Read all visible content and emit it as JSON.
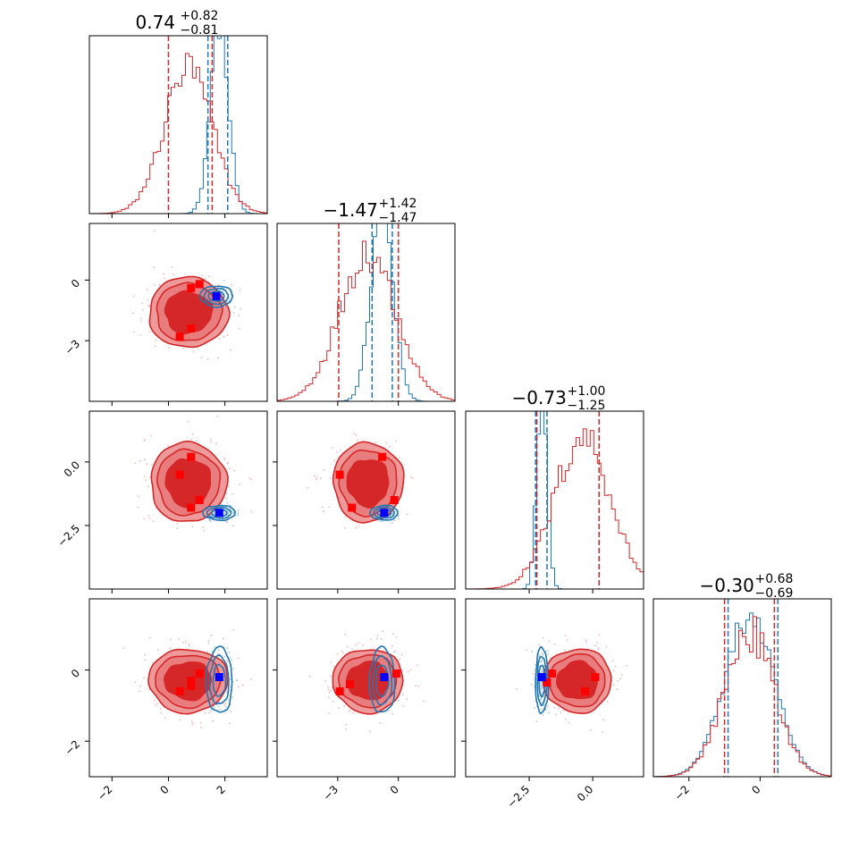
{
  "chart_data": {
    "type": "corner",
    "colors": {
      "red": "#d62728",
      "red_light": "#ee9a9a",
      "blue": "#1f77b4",
      "marker_red": "#ff0000",
      "marker_blue": "#0000ff"
    },
    "parameters": [
      {
        "index": 0,
        "range": [
          -2.8,
          3.5
        ],
        "ticks": [
          -2,
          0,
          2
        ],
        "tick_labels": [
          "−2",
          "0",
          "2"
        ]
      },
      {
        "index": 1,
        "range": [
          -6.0,
          2.8
        ],
        "ticks": [
          -3,
          0
        ],
        "tick_labels": [
          "−3",
          "0"
        ]
      },
      {
        "index": 2,
        "range": [
          -5.0,
          2.0
        ],
        "ticks": [
          -2.5,
          0.0
        ],
        "tick_labels": [
          "−2.5",
          "0.0"
        ]
      },
      {
        "index": 3,
        "range": [
          -3.0,
          2.0
        ],
        "ticks": [
          -2,
          0
        ],
        "tick_labels": [
          "−2",
          "0"
        ]
      }
    ],
    "titles": [
      {
        "main": "0.74",
        "plus": "+0.82",
        "minus": "−0.81"
      },
      {
        "main": "−1.47",
        "plus": "+1.42",
        "minus": "−1.47"
      },
      {
        "main": "−0.73",
        "plus": "+1.00",
        "minus": "−1.25"
      },
      {
        "main": "−0.30",
        "plus": "+0.68",
        "minus": "−0.69"
      }
    ],
    "marginals": [
      {
        "red": {
          "mean": 0.7,
          "sd": 0.85,
          "quantiles": [
            0.0,
            1.55
          ],
          "label_value": 0.74
        },
        "blue": {
          "mean": 1.8,
          "sd": 0.32,
          "quantiles": [
            1.4,
            2.1
          ]
        }
      },
      {
        "red": {
          "mean": -1.5,
          "sd": 1.4,
          "quantiles": [
            -2.95,
            0.0
          ],
          "label_value": -1.47
        },
        "blue": {
          "mean": -0.8,
          "sd": 0.55,
          "quantiles": [
            -1.3,
            -0.3
          ]
        }
      },
      {
        "red": {
          "mean": -0.4,
          "sd": 1.1,
          "quantiles": [
            -2.2,
            0.25
          ],
          "label_value": -0.73
        },
        "blue": {
          "mean": -2.0,
          "sd": 0.2,
          "quantiles": [
            -2.25,
            -1.8
          ]
        }
      },
      {
        "red": {
          "mean": -0.3,
          "sd": 0.7,
          "quantiles": [
            -1.0,
            0.4
          ],
          "label_value": -0.3
        },
        "blue": {
          "mean": -0.3,
          "sd": 0.7,
          "quantiles": [
            -0.9,
            0.5
          ]
        }
      }
    ],
    "pairs": [
      {
        "row": 1,
        "col": 0,
        "red_center": [
          0.7,
          -1.6
        ],
        "red_spread": [
          1.25,
          1.55
        ],
        "blue_center": [
          1.7,
          -0.8
        ],
        "blue_spread": [
          0.5,
          0.45
        ],
        "red_markers": [
          [
            0.8,
            -0.4
          ],
          [
            1.1,
            -0.2
          ],
          [
            0.8,
            -2.4
          ],
          [
            0.4,
            -2.8
          ]
        ],
        "blue_marker": [
          1.7,
          -0.8
        ]
      },
      {
        "row": 2,
        "col": 0,
        "red_center": [
          0.7,
          -0.8
        ],
        "red_spread": [
          1.2,
          1.4
        ],
        "blue_center": [
          1.8,
          -2.0
        ],
        "blue_spread": [
          0.5,
          0.25
        ],
        "red_markers": [
          [
            0.4,
            -0.5
          ],
          [
            0.8,
            0.2
          ],
          [
            0.8,
            -1.8
          ],
          [
            1.1,
            -1.5
          ]
        ],
        "blue_marker": [
          1.8,
          -2.0
        ]
      },
      {
        "row": 2,
        "col": 1,
        "red_center": [
          -1.5,
          -0.8
        ],
        "red_spread": [
          1.55,
          1.4
        ],
        "blue_center": [
          -0.7,
          -2.0
        ],
        "blue_spread": [
          0.6,
          0.25
        ],
        "red_markers": [
          [
            -2.9,
            -0.5
          ],
          [
            -2.3,
            -1.8
          ],
          [
            -0.8,
            0.2
          ],
          [
            -0.2,
            -1.5
          ]
        ],
        "blue_marker": [
          -0.7,
          -2.0
        ]
      },
      {
        "row": 3,
        "col": 0,
        "red_center": [
          0.7,
          -0.3
        ],
        "red_spread": [
          1.25,
          0.8
        ],
        "blue_center": [
          1.8,
          -0.3
        ],
        "blue_spread": [
          0.4,
          0.8
        ],
        "red_markers": [
          [
            0.4,
            -0.6
          ],
          [
            0.8,
            -0.3
          ],
          [
            0.8,
            -0.45
          ],
          [
            1.1,
            -0.1
          ]
        ],
        "blue_marker": [
          1.8,
          -0.2
        ]
      },
      {
        "row": 3,
        "col": 1,
        "red_center": [
          -1.5,
          -0.3
        ],
        "red_spread": [
          1.55,
          0.8
        ],
        "blue_center": [
          -0.8,
          -0.3
        ],
        "blue_spread": [
          0.55,
          0.8
        ],
        "red_markers": [
          [
            -2.9,
            -0.6
          ],
          [
            -2.4,
            -0.4
          ],
          [
            -0.1,
            -0.1
          ]
        ],
        "blue_marker": [
          -0.7,
          -0.2
        ]
      },
      {
        "row": 3,
        "col": 2,
        "red_center": [
          -0.6,
          -0.3
        ],
        "red_spread": [
          1.2,
          0.8
        ],
        "blue_center": [
          -2.0,
          -0.3
        ],
        "blue_spread": [
          0.22,
          0.8
        ],
        "red_markers": [
          [
            -1.8,
            -0.35
          ],
          [
            -1.6,
            -0.1
          ],
          [
            -0.3,
            -0.6
          ],
          [
            0.1,
            -0.2
          ]
        ],
        "blue_marker": [
          -2.0,
          -0.2
        ]
      }
    ]
  }
}
